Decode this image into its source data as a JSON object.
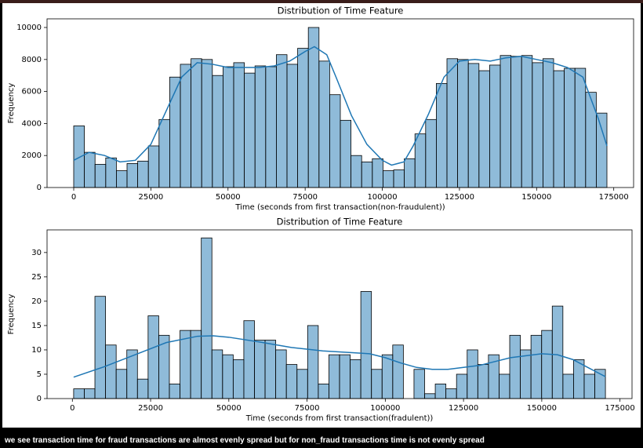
{
  "chart_data": [
    {
      "type": "histogram",
      "title": "Distribution of Time Feature",
      "x_label": "Time (seconds from first transaction(non-fraudulent))",
      "y_label": "Frequency",
      "color": "#1f77b4",
      "bins": [
        0,
        3456,
        6912,
        10368,
        13823,
        17279,
        20735,
        24191,
        27647,
        31103,
        34558,
        38014,
        41470,
        44926,
        48382,
        51838,
        55293,
        58749,
        62205,
        65661,
        69117,
        72573,
        76028,
        79484,
        82940,
        86396,
        89852,
        93308,
        96764,
        100219,
        103675,
        107131,
        110587,
        114043,
        117499,
        120954,
        124410,
        127866,
        131322,
        134778,
        138234,
        141689,
        145145,
        148601,
        152057,
        155513,
        158969,
        162424,
        165880,
        169336,
        172792
      ],
      "values": [
        3850,
        2200,
        1450,
        1850,
        1050,
        1500,
        1650,
        2600,
        4250,
        6900,
        7700,
        8050,
        8000,
        7000,
        7550,
        7800,
        7150,
        7600,
        7550,
        8300,
        7700,
        8700,
        10000,
        7900,
        5800,
        4200,
        2000,
        1600,
        1800,
        1050,
        1100,
        1800,
        3350,
        4250,
        6500,
        8050,
        8000,
        7750,
        7300,
        7650,
        8250,
        8200,
        8250,
        7800,
        8050,
        7300,
        7450,
        7450,
        5950,
        4650
      ],
      "kde": {
        "x": [
          0,
          5000,
          10000,
          15000,
          20000,
          25000,
          30000,
          35000,
          40000,
          45000,
          50000,
          55000,
          60000,
          65000,
          70000,
          75000,
          78000,
          82000,
          85000,
          90000,
          95000,
          100000,
          103000,
          107000,
          110000,
          115000,
          120000,
          125000,
          130000,
          135000,
          140000,
          145000,
          150000,
          155000,
          160000,
          165000,
          170000,
          172792
        ],
        "values": [
          1700,
          2200,
          2000,
          1600,
          1700,
          2700,
          4800,
          6900,
          7800,
          7700,
          7500,
          7500,
          7500,
          7600,
          7900,
          8500,
          8800,
          8300,
          6900,
          4500,
          2700,
          1700,
          1400,
          1600,
          2600,
          4600,
          6900,
          7900,
          8000,
          7900,
          8100,
          8200,
          8000,
          7800,
          7500,
          6900,
          4300,
          2600
        ]
      },
      "xlim": [
        -8640,
        181432
      ],
      "ylim": [
        0,
        10540
      ],
      "xticks": [
        0,
        25000,
        50000,
        75000,
        100000,
        125000,
        150000,
        175000
      ],
      "yticks": [
        0,
        2000,
        4000,
        6000,
        8000,
        10000
      ]
    },
    {
      "type": "histogram",
      "title": "Distribution of Time Feature",
      "x_label": "Time (seconds from first transaction(fradulent))",
      "y_label": "Frequency",
      "color": "#1f77b4",
      "bins": [
        406,
        3805,
        7204,
        10603,
        14001,
        17400,
        20799,
        24198,
        27597,
        30996,
        34394,
        37793,
        41192,
        44591,
        47990,
        51389,
        54787,
        58186,
        61585,
        64984,
        68383,
        71782,
        75180,
        78579,
        81978,
        85377,
        88776,
        92175,
        95574,
        98972,
        102371,
        105770,
        109169,
        112568,
        115967,
        119365,
        122764,
        126163,
        129562,
        132961,
        136360,
        139758,
        143157,
        146556,
        149955,
        153354,
        156753,
        160151,
        163550,
        166949,
        170348
      ],
      "values": [
        2,
        2,
        21,
        11,
        6,
        10,
        4,
        17,
        13,
        3,
        14,
        14,
        33,
        10,
        9,
        8,
        16,
        12,
        12,
        10,
        7,
        6,
        15,
        3,
        9,
        9,
        8,
        22,
        6,
        9,
        11,
        0,
        6,
        1,
        3,
        2,
        5,
        10,
        7,
        9,
        5,
        13,
        10,
        13,
        14,
        19,
        5,
        8,
        5,
        6
      ],
      "kde": {
        "x": [
          406,
          10000,
          20000,
          30000,
          40000,
          45000,
          50000,
          60000,
          70000,
          80000,
          90000,
          95000,
          100000,
          105000,
          110000,
          115000,
          120000,
          130000,
          140000,
          150000,
          155000,
          160000,
          165000,
          170348
        ],
        "values": [
          4.4,
          6.5,
          9,
          11.5,
          12.8,
          12.9,
          12.6,
          11.6,
          10.5,
          9.8,
          9.4,
          9.2,
          8.4,
          7.3,
          6.4,
          6.0,
          6.0,
          6.8,
          8.4,
          9.2,
          9.0,
          8.0,
          6.3,
          4.5
        ]
      },
      "xlim": [
        -8091,
        178845
      ],
      "ylim": [
        0,
        34.65
      ],
      "xticks": [
        0,
        25000,
        50000,
        75000,
        100000,
        125000,
        150000,
        175000
      ],
      "yticks": [
        0,
        5,
        10,
        15,
        20,
        25,
        30
      ]
    }
  ],
  "caption": "we see transaction time for fraud transactions are almost evenly spread but for non_fraud transactions time is not evenly spread"
}
